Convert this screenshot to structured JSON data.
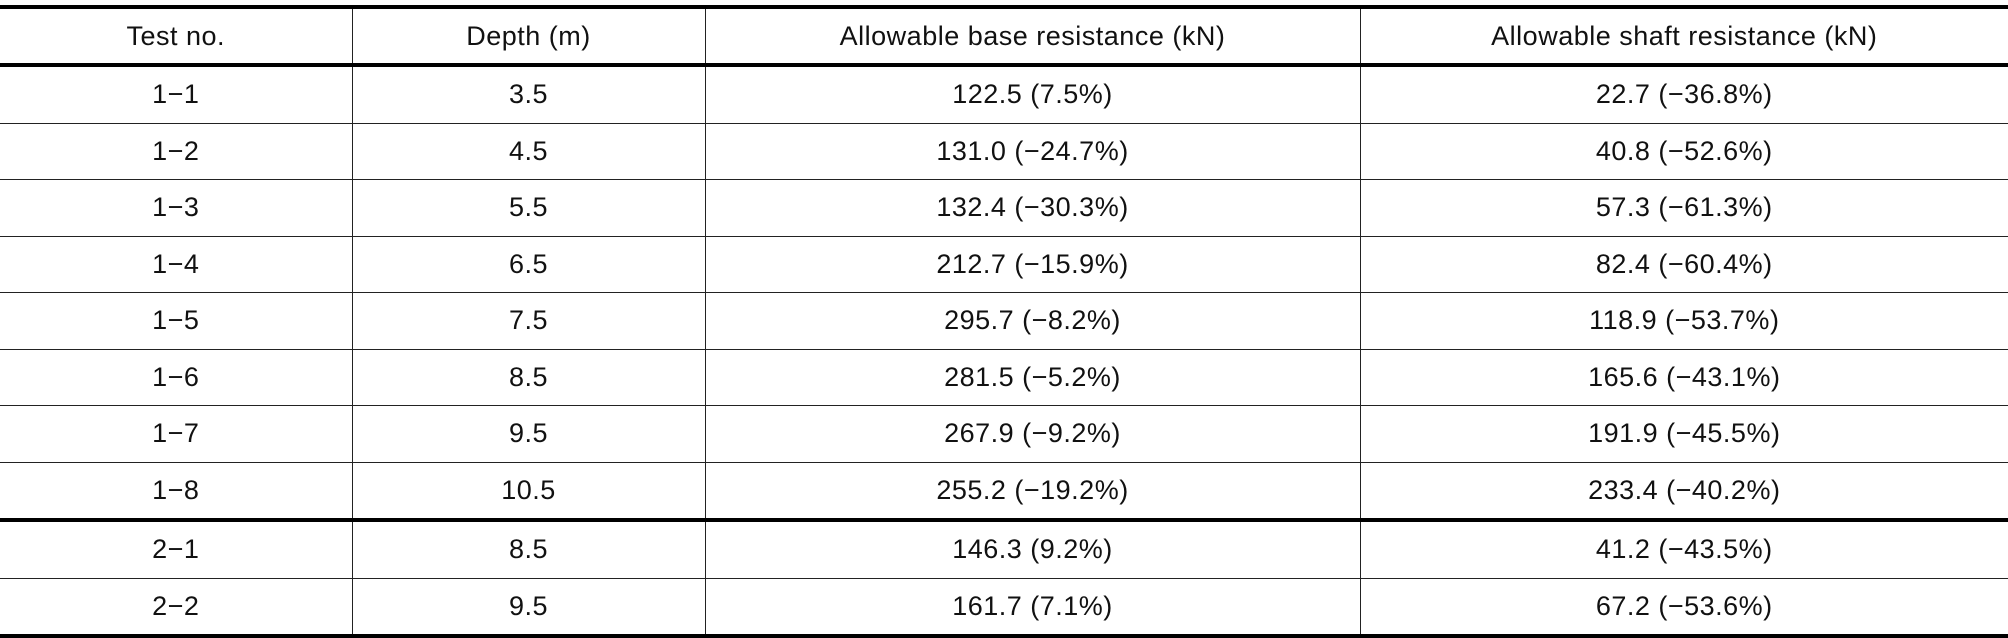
{
  "table": {
    "header": [
      "Test no.",
      "Depth (m)",
      "Allowable base resistance (kN)",
      "Allowable shaft resistance (kN)"
    ],
    "row_groups": [
      [
        [
          "1−1",
          "3.5",
          "122.5 (7.5%)",
          "22.7 (−36.8%)"
        ],
        [
          "1−2",
          "4.5",
          "131.0 (−24.7%)",
          "40.8 (−52.6%)"
        ],
        [
          "1−3",
          "5.5",
          "132.4 (−30.3%)",
          "57.3 (−61.3%)"
        ],
        [
          "1−4",
          "6.5",
          "212.7 (−15.9%)",
          "82.4 (−60.4%)"
        ],
        [
          "1−5",
          "7.5",
          "295.7 (−8.2%)",
          "118.9 (−53.7%)"
        ],
        [
          "1−6",
          "8.5",
          "281.5 (−5.2%)",
          "165.6 (−43.1%)"
        ],
        [
          "1−7",
          "9.5",
          "267.9 (−9.2%)",
          "191.9 (−45.5%)"
        ],
        [
          "1−8",
          "10.5",
          "255.2 (−19.2%)",
          "233.4 (−40.2%)"
        ]
      ],
      [
        [
          "2−1",
          "8.5",
          "146.3 (9.2%)",
          "41.2 (−43.5%)"
        ],
        [
          "2−2",
          "9.5",
          "161.7 (7.1%)",
          "67.2 (−53.6%)"
        ]
      ]
    ]
  }
}
